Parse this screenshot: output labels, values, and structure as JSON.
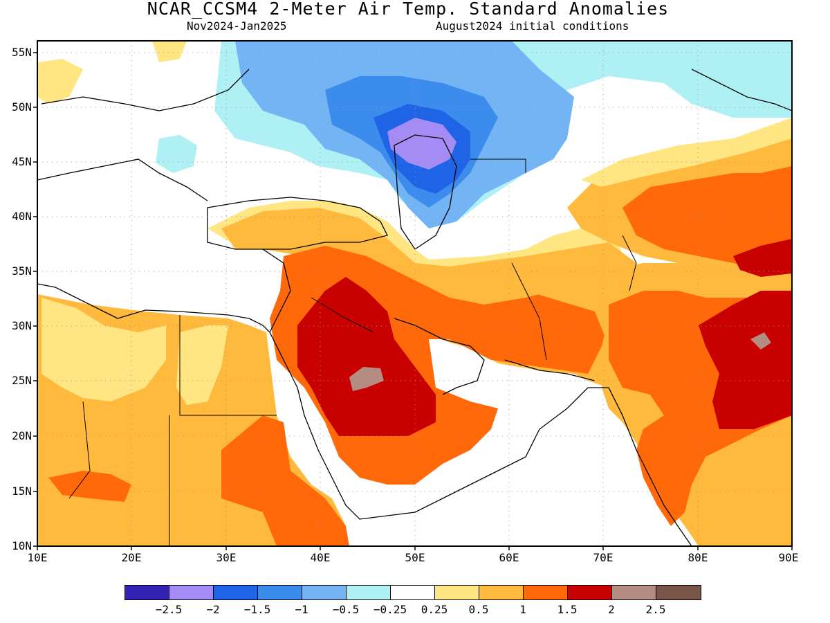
{
  "title": "NCAR_CCSM4 2-Meter Air Temp. Standard Anomalies",
  "subtitle_left": "Nov2024-Jan2025",
  "subtitle_right": "August2024 initial conditions",
  "y_ticks": [
    "55N",
    "50N",
    "45N",
    "40N",
    "35N",
    "30N",
    "25N",
    "20N",
    "15N",
    "10N"
  ],
  "x_ticks": [
    "10E",
    "20E",
    "30E",
    "40E",
    "50E",
    "60E",
    "70E",
    "80E",
    "90E"
  ],
  "colorbar": {
    "colors": [
      "#3422b4",
      "#a58cf5",
      "#1f64e6",
      "#3c8ced",
      "#73b4f5",
      "#aff0f5",
      "#ffffff",
      "#ffe682",
      "#ffb93c",
      "#ff690a",
      "#c80000",
      "#b48c82",
      "#785546"
    ],
    "labels": [
      "−2.5",
      "−2",
      "−1.5",
      "−1",
      "−0.5",
      "−0.25",
      "0.25",
      "0.5",
      "1",
      "1.5",
      "2",
      "2.5"
    ]
  },
  "legend_colors": {
    "purple_dark": "#3422b4",
    "purple_light": "#a58cf5",
    "blue_dark": "#1f64e6",
    "blue": "#3c8ced",
    "blue_light": "#73b4f5",
    "cyan_light": "#aff0f5",
    "white": "#ffffff",
    "yellow": "#ffe682",
    "orange_light": "#ffb93c",
    "orange": "#ff690a",
    "red": "#c80000",
    "brown_light": "#b48c82",
    "brown": "#785546"
  }
}
